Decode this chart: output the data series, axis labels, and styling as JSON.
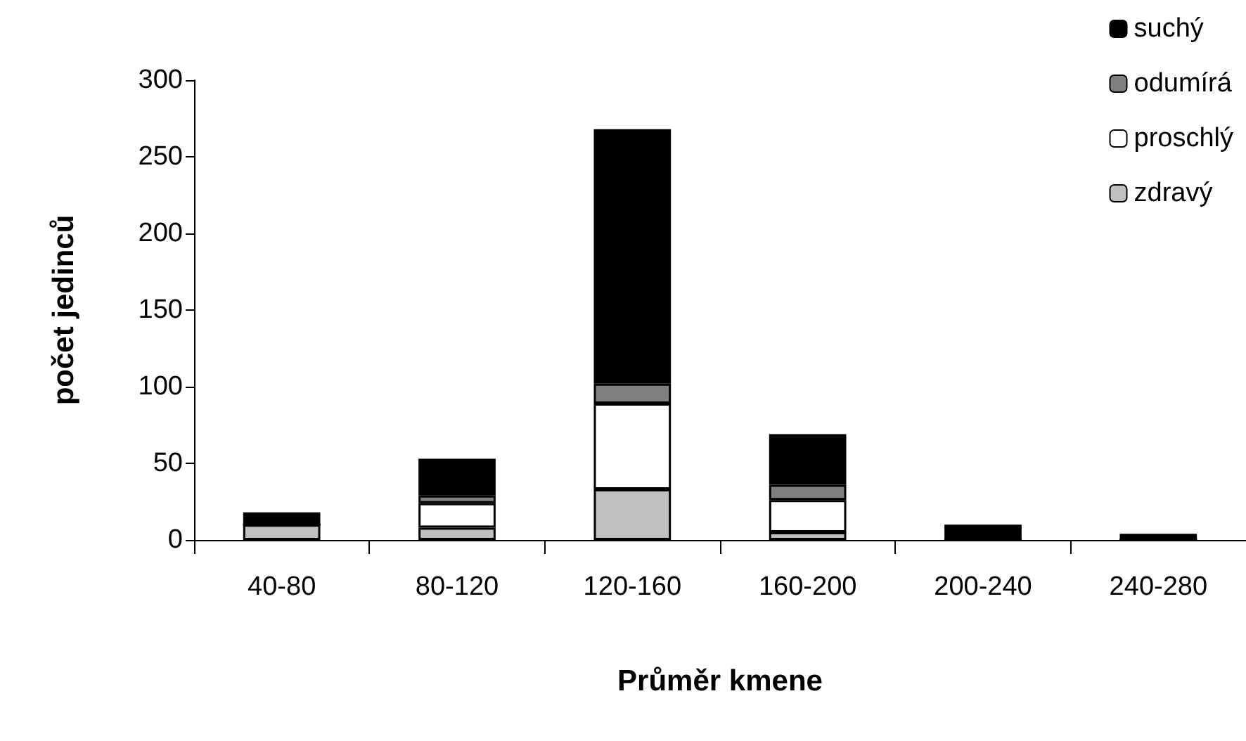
{
  "chart_data": {
    "type": "bar",
    "stacked": true,
    "xlabel": "Průměr kmene",
    "ylabel": "počet jedinců",
    "categories": [
      "40-80",
      "80-120",
      "120-160",
      "160-200",
      "200-240",
      "240-280"
    ],
    "series": [
      {
        "name": "zdravý",
        "color": "#c0c0c0",
        "values": [
          10,
          8,
          33,
          5,
          0,
          0
        ]
      },
      {
        "name": "proschlý",
        "color": "#ffffff",
        "values": [
          0,
          16,
          56,
          21,
          0,
          0
        ]
      },
      {
        "name": "odumírá",
        "color": "#808080",
        "values": [
          0,
          5,
          13,
          10,
          0,
          0
        ]
      },
      {
        "name": "suchý",
        "color": "#000000",
        "values": [
          8,
          24,
          166,
          33,
          10,
          4
        ]
      }
    ],
    "ylim": [
      0,
      300
    ],
    "yticks": [
      0,
      50,
      100,
      150,
      200,
      250,
      300
    ],
    "grid": false,
    "legend": "top right"
  }
}
